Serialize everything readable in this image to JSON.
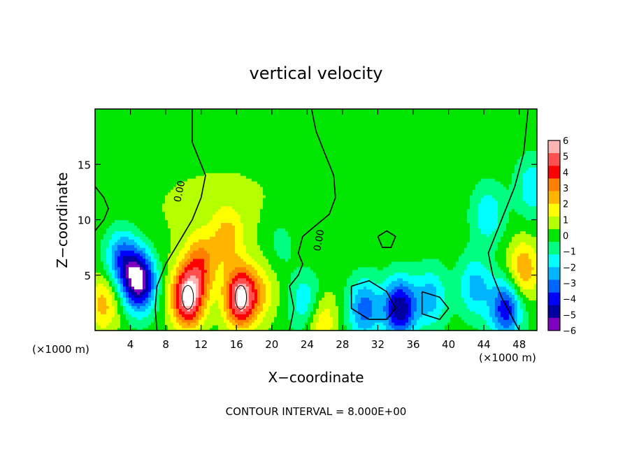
{
  "chart_data": {
    "type": "heatmap",
    "title": "vertical velocity",
    "xlabel": "X−coordinate",
    "ylabel": "Z−coordinate",
    "x_unit": "(×1000 m)",
    "y_unit": "(×1000 m)",
    "footer": "CONTOUR INTERVAL = 8.000E+00",
    "xlim": [
      0,
      50
    ],
    "ylim": [
      0,
      20
    ],
    "x_ticks": [
      "4",
      "8",
      "12",
      "16",
      "20",
      "24",
      "28",
      "32",
      "36",
      "40",
      "44",
      "48"
    ],
    "y_ticks": [
      "5",
      "10",
      "15"
    ],
    "contour_labels": [
      "0.00",
      "0.00"
    ],
    "colorbar": {
      "ticks": [
        "6",
        "5",
        "4",
        "3",
        "2",
        "1",
        "0",
        "−1",
        "−2",
        "−3",
        "−4",
        "−5",
        "−6"
      ],
      "colors": [
        "#ffb4b4",
        "#ff5050",
        "#ff0000",
        "#ff8000",
        "#ffb400",
        "#ffff00",
        "#b4ff00",
        "#00e600",
        "#00ff80",
        "#00ffff",
        "#00b4ff",
        "#0064ff",
        "#0000ff",
        "#0000a0",
        "#8000c0"
      ]
    },
    "background_value": 0,
    "features": [
      {
        "x": 5.0,
        "z": 4.5,
        "value": -6.5
      },
      {
        "x": 3.0,
        "z": 6.5,
        "value": -3.5
      },
      {
        "x": 10.5,
        "z": 3.0,
        "value": 6.5
      },
      {
        "x": 12.0,
        "z": 6.0,
        "value": 3.0
      },
      {
        "x": 16.5,
        "z": 3.0,
        "value": 6.5
      },
      {
        "x": 15.0,
        "z": 8.5,
        "value": 2.0
      },
      {
        "x": 19.0,
        "z": 3.5,
        "value": 1.5
      },
      {
        "x": 25.5,
        "z": 1.0,
        "value": 2.5
      },
      {
        "x": 24.0,
        "z": 2.5,
        "value": -2.5
      },
      {
        "x": 30.5,
        "z": 2.0,
        "value": -3.5
      },
      {
        "x": 34.5,
        "z": 2.0,
        "value": -5.5
      },
      {
        "x": 38.0,
        "z": 3.0,
        "value": -2.5
      },
      {
        "x": 43.0,
        "z": 4.0,
        "value": -2.5
      },
      {
        "x": 46.5,
        "z": 2.0,
        "value": -4.5
      },
      {
        "x": 48.5,
        "z": 5.5,
        "value": 3.0
      },
      {
        "x": 1.0,
        "z": 2.5,
        "value": 2.5
      },
      {
        "x": 44.5,
        "z": 10.5,
        "value": -2.0
      },
      {
        "x": 49.5,
        "z": 13.0,
        "value": -2.0
      },
      {
        "x": 21.0,
        "z": 8.0,
        "value": -1.0
      }
    ]
  }
}
